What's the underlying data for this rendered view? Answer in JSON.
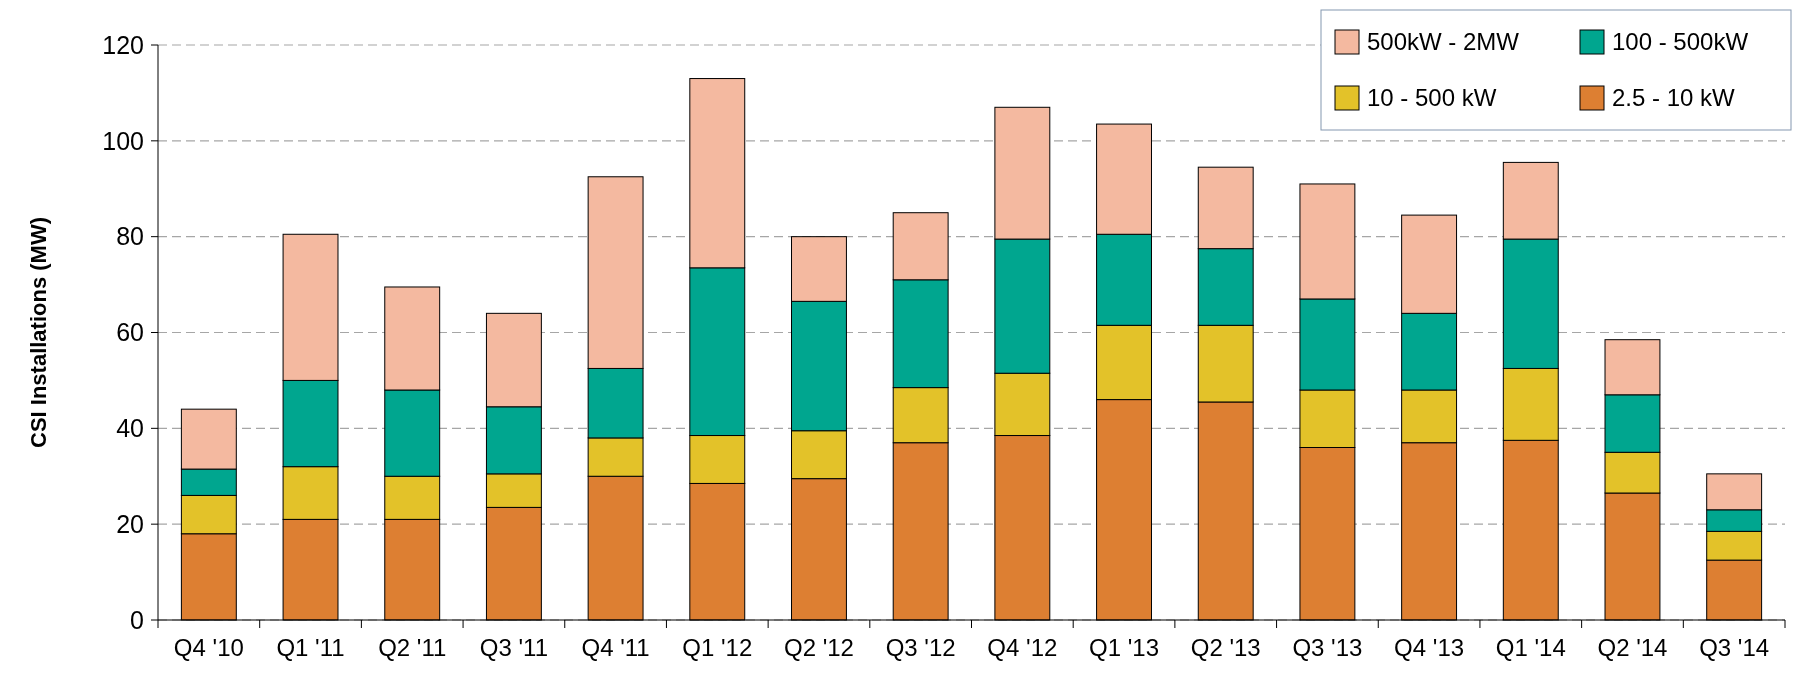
{
  "chart_data": {
    "type": "bar",
    "stacked": true,
    "ylabel": "CSI Installations (MW)",
    "categories": [
      "Q4 '10",
      "Q1 '11",
      "Q2 '11",
      "Q3 '11",
      "Q4 '11",
      "Q1 '12",
      "Q2 '12",
      "Q3 '12",
      "Q4 '12",
      "Q1 '13",
      "Q2 '13",
      "Q3 '13",
      "Q4 '13",
      "Q1 '14",
      "Q2 '14",
      "Q3 '14"
    ],
    "series": [
      {
        "name": "2.5 - 10 kW",
        "color": "#dd7f32",
        "values": [
          18,
          21,
          21,
          23.5,
          30,
          28.5,
          29.5,
          37,
          38.5,
          46,
          45.5,
          36,
          37,
          37.5,
          26.5,
          12.5
        ]
      },
      {
        "name": "10 - 500 kW",
        "color": "#e3c229",
        "values": [
          8,
          11,
          9,
          7,
          8,
          10,
          10,
          11.5,
          13,
          15.5,
          16,
          12,
          11,
          15,
          8.5,
          6
        ]
      },
      {
        "name": "100 - 500kW",
        "color": "#00a68f",
        "values": [
          5.5,
          18,
          18,
          14,
          14.5,
          35,
          27,
          22.5,
          28,
          19,
          16,
          19,
          16,
          27,
          12,
          4.5
        ]
      },
      {
        "name": "500kW - 2MW",
        "color": "#f4b9a0",
        "values": [
          12.5,
          30.5,
          21.5,
          19.5,
          40,
          39.5,
          13.5,
          14,
          27.5,
          23,
          17,
          24,
          20.5,
          16,
          11.5,
          7.5
        ]
      }
    ],
    "ylim": [
      0,
      120
    ],
    "yticks": [
      0,
      20,
      40,
      60,
      80,
      100,
      120
    ],
    "grid": "y",
    "legend": "top right"
  }
}
